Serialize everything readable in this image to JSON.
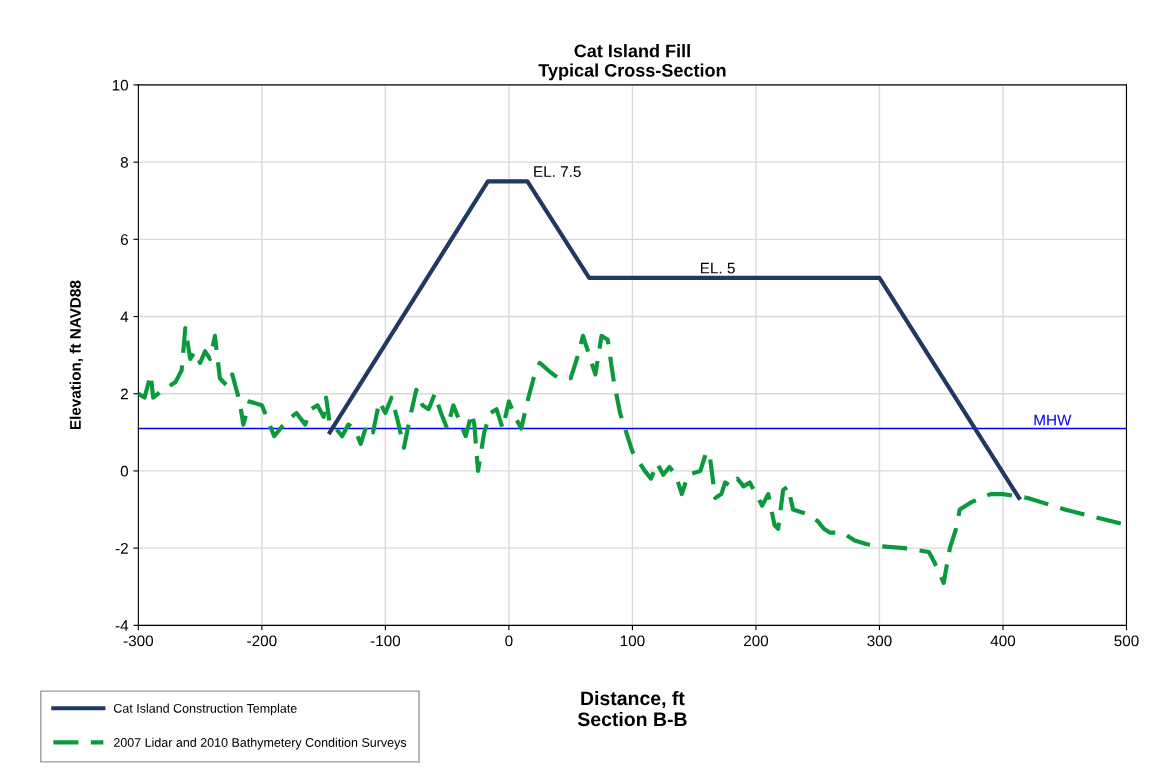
{
  "chart_data": {
    "type": "line",
    "title": "Cat Island Fill\nTypical Cross-Section",
    "xlabel": "Distance, ft\nSection B-B",
    "ylabel": "Elevation, ft NAVD88",
    "xlim": [
      -300,
      500
    ],
    "xticks": [
      -300,
      -200,
      -100,
      0,
      100,
      200,
      300,
      400,
      500
    ],
    "ylim": [
      -4,
      10
    ],
    "yticks": [
      -4,
      -2,
      0,
      2,
      4,
      6,
      8,
      10
    ],
    "grid": true,
    "legend": "bottom left",
    "marker": "none",
    "series": [
      {
        "name": "Cat Island Construction Template",
        "color": "#1f3864",
        "line_style": "solid",
        "x": [
          -145,
          -17,
          15,
          65,
          300,
          413
        ],
        "values": [
          1,
          7.5,
          7.5,
          5,
          5,
          -0.7
        ]
      },
      {
        "name": "2007 Lidar and 2010 Bathymetery Condition Surveys",
        "color": "#0a9a3c",
        "line_style": "dashed",
        "x": [
          -300,
          -295,
          -290,
          -288,
          -280,
          -270,
          -265,
          -262,
          -258,
          -254,
          -250,
          -246,
          -242,
          -238,
          -234,
          -228,
          -224,
          -218,
          -215,
          -210,
          -200,
          -195,
          -190,
          -180,
          -172,
          -165,
          -160,
          -155,
          -150,
          -148,
          -145,
          -140,
          -135,
          -130,
          -125,
          -120,
          -115,
          -110,
          -105,
          -100,
          -95,
          -90,
          -85,
          -80,
          -75,
          -70,
          -65,
          -60,
          -55,
          -50,
          -45,
          -40,
          -35,
          -30,
          -28,
          -25,
          -20,
          -15,
          -10,
          -5,
          0,
          5,
          10,
          15,
          20,
          25,
          32,
          40,
          50,
          55,
          60,
          65,
          70,
          75,
          80,
          85,
          90,
          95,
          100,
          110,
          115,
          120,
          125,
          130,
          135,
          140,
          145,
          155,
          160,
          163,
          167,
          172,
          175,
          180,
          185,
          190,
          195,
          200,
          205,
          210,
          215,
          218,
          222,
          226,
          230,
          240,
          250,
          255,
          260,
          270,
          280,
          290,
          300,
          320,
          340,
          345,
          352,
          357,
          362,
          365,
          375,
          390,
          400,
          420,
          450,
          500
        ],
        "values": [
          2.0,
          1.9,
          2.5,
          1.9,
          2.1,
          2.3,
          2.6,
          3.7,
          2.9,
          3.1,
          2.8,
          3.1,
          2.9,
          3.5,
          2.4,
          2.2,
          2.5,
          1.8,
          1.2,
          1.8,
          1.7,
          1.3,
          0.9,
          1.3,
          1.5,
          1.2,
          1.6,
          1.7,
          1.4,
          1.9,
          1.2,
          1.1,
          0.9,
          1.2,
          1.1,
          0.7,
          1.2,
          1.0,
          1.8,
          1.5,
          1.9,
          1.3,
          0.6,
          1.4,
          2.1,
          1.7,
          1.6,
          2.0,
          1.5,
          1.1,
          1.7,
          1.3,
          0.9,
          1.5,
          1.2,
          0.0,
          1.0,
          1.5,
          1.6,
          1.1,
          1.8,
          1.4,
          1.1,
          1.8,
          2.4,
          2.8,
          2.6,
          2.4,
          2.4,
          2.9,
          3.5,
          3.0,
          2.5,
          3.5,
          3.4,
          2.3,
          1.5,
          1.0,
          0.5,
          0.0,
          -0.2,
          0.2,
          -0.1,
          0.1,
          -0.1,
          -0.6,
          -0.1,
          0.0,
          0.5,
          0.3,
          -0.7,
          -0.6,
          -0.3,
          -0.4,
          -0.2,
          -0.4,
          -0.3,
          -0.6,
          -0.9,
          -0.6,
          -1.4,
          -1.5,
          -0.5,
          -0.4,
          -1.0,
          -1.1,
          -1.3,
          -1.5,
          -1.6,
          -1.6,
          -1.8,
          -1.9,
          -1.95,
          -2.0,
          -2.1,
          -2.4,
          -2.9,
          -2.0,
          -1.5,
          -1.0,
          -0.8,
          -0.6,
          -0.6,
          -0.7,
          -1.0,
          -1.4
        ]
      }
    ],
    "ref_lines": [
      {
        "axis": "y",
        "value": 1.1,
        "label": "MHW",
        "color": "#0000ff",
        "line_style": "solid"
      }
    ],
    "annotations": [
      {
        "text": "EL. 7.5",
        "x": 15,
        "y": 7.5
      },
      {
        "text": "EL. 5",
        "x": 150,
        "y": 5
      }
    ]
  }
}
